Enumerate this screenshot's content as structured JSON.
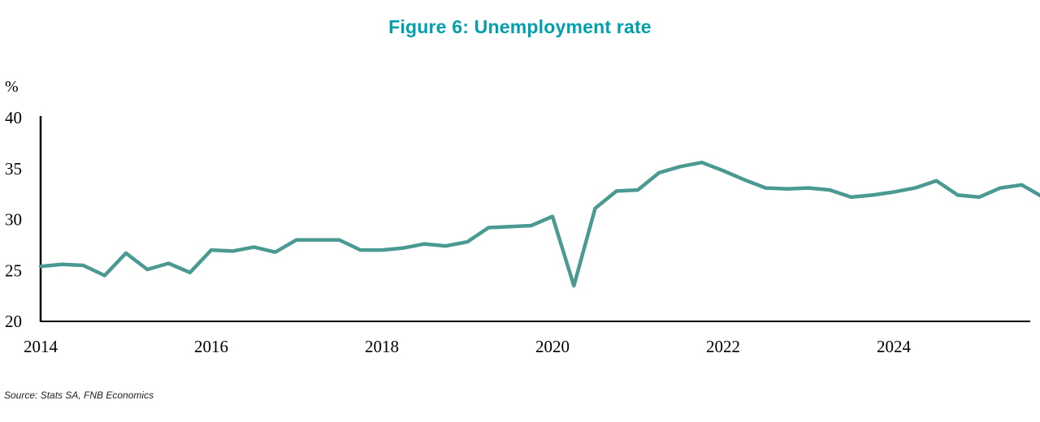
{
  "chart_data": {
    "type": "line",
    "title": "Figure 6: Unemployment rate",
    "ylabel": "%",
    "source": "Source: Stats SA, FNB Economics",
    "title_color": "#00a0ad",
    "line_color": "#4a9a92",
    "axis_color": "#000000",
    "xlim": [
      2014,
      2025.6
    ],
    "ylim": [
      20,
      40
    ],
    "yticks": [
      20,
      25,
      30,
      35,
      40
    ],
    "xticks": [
      2014,
      2016,
      2018,
      2020,
      2022,
      2024
    ],
    "x_start": 2014,
    "x_step": 0.25,
    "series_name": "Unemployment rate (%)",
    "values": [
      25.4,
      25.6,
      25.5,
      24.5,
      26.7,
      25.1,
      25.7,
      24.8,
      27.0,
      26.9,
      27.3,
      26.8,
      28.0,
      28.0,
      28.0,
      27.0,
      27.0,
      27.2,
      27.6,
      27.4,
      27.8,
      29.2,
      29.3,
      29.4,
      30.3,
      23.5,
      31.1,
      32.8,
      32.9,
      34.6,
      35.2,
      35.6,
      34.8,
      33.9,
      33.1,
      33.0,
      33.1,
      32.9,
      32.2,
      32.4,
      32.7,
      33.1,
      33.8,
      32.4,
      32.2,
      33.1,
      33.4,
      32.2
    ]
  }
}
